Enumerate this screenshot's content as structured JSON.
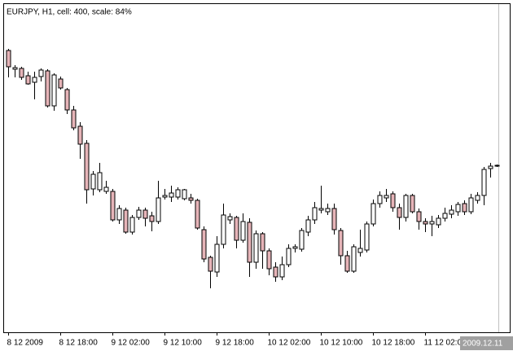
{
  "chart_data": {
    "type": "candlestick",
    "title": "EURJPY, H1, cell: 400, scale: 84%",
    "categories": [
      "8 12 2009",
      null,
      null,
      null,
      null,
      null,
      null,
      null,
      "8 12 18:00",
      null,
      null,
      null,
      null,
      null,
      null,
      null,
      "9 12 02:00",
      null,
      null,
      null,
      null,
      null,
      null,
      null,
      "9 12 10:00",
      null,
      null,
      null,
      null,
      null,
      null,
      null,
      "9 12 18:00",
      null,
      null,
      null,
      null,
      null,
      null,
      null,
      "10 12 02:00",
      null,
      null,
      null,
      null,
      null,
      null,
      null,
      "10 12 10:00",
      null,
      null,
      null,
      null,
      null,
      null,
      null,
      "10 12 18:00",
      null,
      null,
      null,
      null,
      null,
      null,
      null,
      "11 12 02:00",
      null,
      null,
      null,
      null,
      null,
      null,
      null,
      null,
      null,
      null,
      null
    ],
    "open": [
      346,
      323,
      324,
      315,
      307,
      314,
      321,
      278,
      311,
      298,
      273,
      253,
      232,
      176,
      175,
      173,
      173,
      138,
      150,
      123,
      141,
      150,
      143,
      136,
      166,
      166,
      166,
      164,
      165,
      162,
      126,
      92,
      74,
      108,
      138,
      141,
      113,
      135,
      86,
      121,
      100,
      80,
      68,
      83,
      103,
      102,
      123,
      138,
      150,
      148,
      152,
      125,
      94,
      75,
      98,
      101,
      133,
      158,
      165,
      170,
      153,
      141,
      168,
      148,
      136,
      133,
      132,
      140,
      145,
      148,
      158,
      148,
      162,
      168,
      201,
      204
    ],
    "high": [
      348,
      328,
      326,
      320,
      320,
      324,
      323,
      318,
      314,
      300,
      278,
      258,
      236,
      198,
      208,
      186,
      176,
      156,
      153,
      144,
      154,
      153,
      148,
      186,
      176,
      180,
      178,
      176,
      170,
      164,
      130,
      94,
      118,
      158,
      146,
      143,
      146,
      140,
      125,
      123,
      103,
      86,
      93,
      108,
      108,
      128,
      143,
      160,
      180,
      158,
      158,
      128,
      100,
      108,
      126,
      136,
      163,
      173,
      176,
      173,
      158,
      170,
      170,
      152,
      140,
      143,
      144,
      153,
      156,
      160,
      162,
      170,
      172,
      203,
      208,
      206
    ],
    "low": [
      313,
      313,
      310,
      304,
      286,
      308,
      276,
      272,
      298,
      268,
      248,
      213,
      158,
      168,
      172,
      170,
      136,
      133,
      121,
      120,
      138,
      130,
      124,
      133,
      163,
      160,
      163,
      162,
      158,
      126,
      86,
      54,
      68,
      103,
      133,
      103,
      110,
      68,
      78,
      78,
      70,
      62,
      64,
      80,
      98,
      99,
      118,
      133,
      146,
      144,
      120,
      83,
      73,
      73,
      93,
      98,
      130,
      153,
      160,
      148,
      126,
      136,
      146,
      126,
      123,
      118,
      128,
      136,
      140,
      143,
      144,
      145,
      158,
      156,
      190,
      203
    ],
    "close": [
      326,
      325,
      313,
      305,
      313,
      322,
      278,
      316,
      300,
      273,
      251,
      231,
      175,
      194,
      196,
      178,
      138,
      152,
      123,
      141,
      150,
      140,
      136,
      165,
      168,
      171,
      175,
      175,
      162,
      128,
      90,
      75,
      108,
      144,
      142,
      113,
      136,
      86,
      121,
      100,
      78,
      68,
      83,
      103,
      105,
      125,
      138,
      153,
      152,
      152,
      126,
      94,
      75,
      105,
      103,
      133,
      158,
      168,
      168,
      153,
      141,
      168,
      148,
      136,
      133,
      136,
      140,
      146,
      150,
      157,
      148,
      165,
      168,
      200,
      204,
      205
    ],
    "up_color": "#ffffff",
    "down_color": "#e6b4b8",
    "ylim": [
      0,
      403
    ],
    "cursor_label": "2009.12.11"
  }
}
